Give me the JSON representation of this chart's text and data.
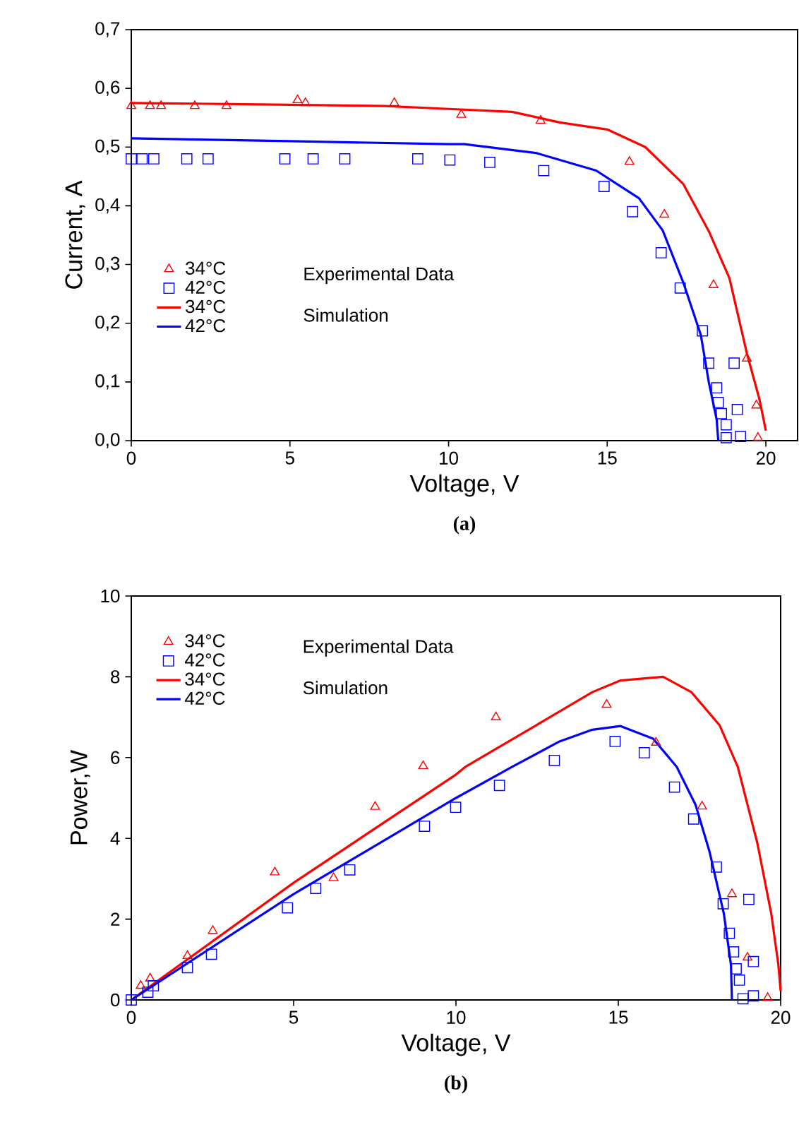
{
  "chart_data": [
    {
      "type": "scatter",
      "title": "(a)",
      "xlabel": "Voltage, V",
      "ylabel": "Current, A",
      "xlim": [
        0,
        21
      ],
      "ylim": [
        0,
        0.7
      ],
      "xticks": [
        0,
        5,
        10,
        15,
        20
      ],
      "yticks": [
        {
          "value": 0,
          "label": "0,0"
        },
        {
          "value": 0.1,
          "label": "0,1"
        },
        {
          "value": 0.2,
          "label": "0,2"
        },
        {
          "value": 0.3,
          "label": "0,3"
        },
        {
          "value": 0.4,
          "label": "0,4"
        },
        {
          "value": 0.5,
          "label": "0,5"
        },
        {
          "value": 0.6,
          "label": "0,6"
        },
        {
          "value": 0.7,
          "label": "0,7"
        }
      ],
      "legend": "left",
      "annotations": [
        "Experimental Data",
        "Simulation"
      ],
      "series": [
        {
          "name": "34°C",
          "marker": "triangle",
          "color": "#ff0000",
          "x": [
            0,
            0.59,
            0.94,
            2.0,
            3.0,
            5.24,
            5.49,
            8.29,
            10.4,
            12.9,
            15.7,
            16.8,
            18.35,
            19.4,
            19.7,
            19.75
          ],
          "values": [
            0.57,
            0.57,
            0.57,
            0.57,
            0.57,
            0.58,
            0.575,
            0.575,
            0.555,
            0.545,
            0.475,
            0.385,
            0.265,
            0.14,
            0.06,
            0.005
          ]
        },
        {
          "name": "42°C",
          "marker": "square",
          "color": "#0000ff",
          "x": [
            0,
            0.34,
            0.71,
            1.75,
            2.42,
            4.84,
            5.73,
            6.73,
            9.03,
            10.04,
            11.3,
            13.0,
            14.9,
            15.8,
            16.7,
            17.3,
            18.0,
            18.2,
            19.0,
            18.45,
            18.5,
            19.1,
            18.6,
            18.75,
            19.2,
            18.75
          ],
          "values": [
            0.48,
            0.48,
            0.48,
            0.48,
            0.48,
            0.48,
            0.48,
            0.48,
            0.48,
            0.478,
            0.474,
            0.46,
            0.433,
            0.39,
            0.32,
            0.26,
            0.187,
            0.132,
            0.132,
            0.09,
            0.065,
            0.053,
            0.046,
            0.027,
            0.007,
            0.005
          ]
        },
        {
          "name": "34°C",
          "type": "line",
          "marker": "none",
          "color": "#ff0000",
          "x": [
            0,
            2,
            5,
            8,
            10,
            12,
            13.5,
            15,
            16.2,
            17.4,
            18.2,
            18.85,
            19.4,
            19.8,
            20
          ],
          "values": [
            0.575,
            0.574,
            0.572,
            0.57,
            0.565,
            0.56,
            0.542,
            0.53,
            0.5,
            0.437,
            0.357,
            0.277,
            0.149,
            0.07,
            0.017
          ]
        },
        {
          "name": "42°C",
          "type": "line",
          "marker": "none",
          "color": "#0000ff",
          "x": [
            0,
            5,
            10,
            10.5,
            12.75,
            14.65,
            16,
            16.75,
            17.4,
            17.95,
            18.2,
            18.45,
            18.5
          ],
          "values": [
            0.515,
            0.51,
            0.505,
            0.505,
            0.49,
            0.46,
            0.413,
            0.358,
            0.269,
            0.18,
            0.1,
            0.036,
            0
          ]
        }
      ]
    },
    {
      "type": "scatter",
      "title": "(b)",
      "xlabel": "Voltage, V",
      "ylabel": "Power,W",
      "xlim": [
        0,
        20
      ],
      "ylim": [
        0,
        10
      ],
      "xticks": [
        0,
        5,
        10,
        15,
        20
      ],
      "yticks": [
        0,
        2,
        4,
        6,
        8,
        10
      ],
      "legend": "top left",
      "annotations": [
        "Experimental Data",
        "Simulation"
      ],
      "series": [
        {
          "name": "34°C",
          "marker": "triangle",
          "color": "#ff0000",
          "x": [
            0.29,
            0.58,
            1.73,
            2.51,
            4.42,
            6.23,
            7.51,
            8.99,
            11.23,
            14.64,
            16.16,
            17.58,
            18.5,
            18.98,
            19.6
          ],
          "values": [
            0.35,
            0.53,
            1.09,
            1.71,
            3.16,
            3.02,
            4.78,
            5.79,
            7.0,
            7.31,
            6.37,
            4.79,
            2.62,
            1.05,
            0.05
          ]
        },
        {
          "name": "42°C",
          "marker": "square",
          "color": "#0000ff",
          "x": [
            0,
            0.51,
            0.68,
            1.73,
            2.47,
            4.81,
            5.68,
            6.73,
            9.03,
            9.99,
            11.34,
            13.03,
            14.9,
            15.8,
            16.73,
            17.32,
            18.02,
            18.23,
            19.02,
            18.42,
            18.55,
            19.16,
            18.63,
            18.73,
            19.16,
            18.84
          ],
          "values": [
            0,
            0.19,
            0.35,
            0.8,
            1.13,
            2.28,
            2.76,
            3.22,
            4.3,
            4.77,
            5.31,
            5.93,
            6.4,
            6.12,
            5.27,
            4.48,
            3.29,
            2.38,
            2.49,
            1.65,
            1.19,
            0.95,
            0.77,
            0.49,
            0.1,
            0.03
          ]
        },
        {
          "name": "34°C",
          "type": "line",
          "marker": "none",
          "color": "#ff0000",
          "x": [
            0,
            5,
            10,
            10.29,
            12.47,
            14.2,
            15.07,
            16.38,
            17.25,
            18.12,
            18.68,
            19.28,
            19.71,
            19.93,
            20
          ],
          "values": [
            0,
            2.9,
            5.58,
            5.77,
            6.8,
            7.62,
            7.91,
            8.0,
            7.62,
            6.8,
            5.77,
            3.89,
            2.14,
            0.87,
            0.22
          ]
        },
        {
          "name": "42°C",
          "type": "line",
          "marker": "none",
          "color": "#0000ff",
          "x": [
            0,
            5,
            10,
            11.73,
            13.19,
            14.2,
            15.07,
            16.07,
            16.8,
            17.38,
            17.81,
            18.25,
            18.47,
            18.5
          ],
          "values": [
            0,
            2.62,
            5.0,
            5.77,
            6.4,
            6.69,
            6.78,
            6.47,
            5.77,
            4.83,
            3.67,
            2.14,
            0.87,
            0
          ]
        }
      ]
    }
  ]
}
